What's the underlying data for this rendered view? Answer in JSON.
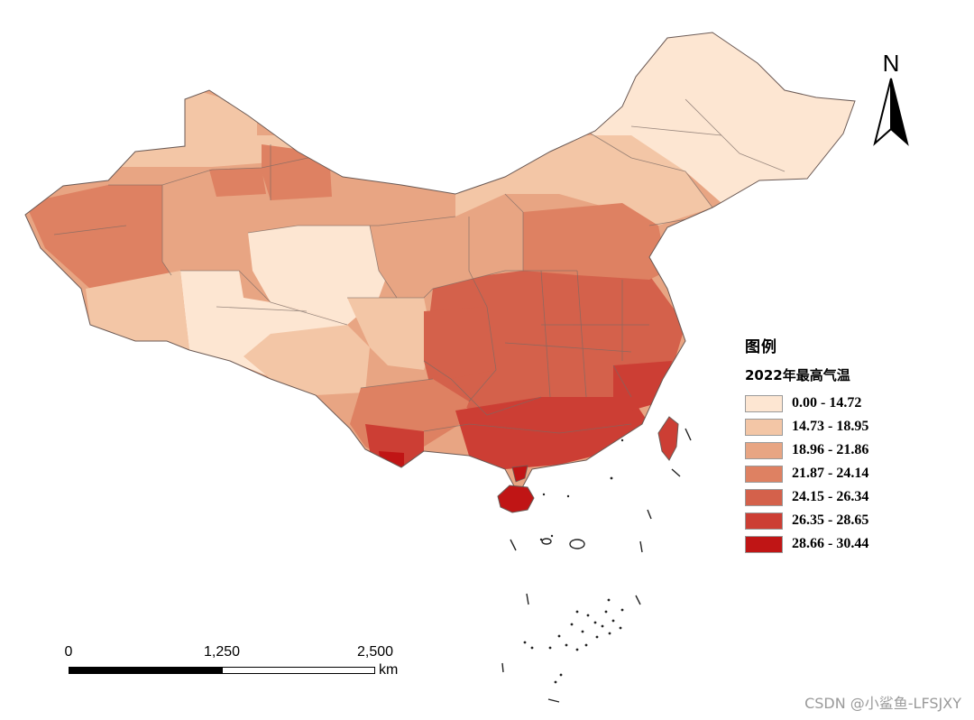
{
  "map": {
    "north_label": "N",
    "boundary_color": "#7a6a64",
    "island_color": "#222222"
  },
  "legend": {
    "title": "图例",
    "subtitle": "2022年最高气温",
    "classes": [
      {
        "label": "0.00 - 14.72",
        "color": "#fde6d2"
      },
      {
        "label": "14.73 - 18.95",
        "color": "#f3c6a6"
      },
      {
        "label": "18.96 - 21.86",
        "color": "#e8a583"
      },
      {
        "label": "21.87 - 24.14",
        "color": "#de8162"
      },
      {
        "label": "24.15 - 26.34",
        "color": "#d4614b"
      },
      {
        "label": "26.35 - 28.65",
        "color": "#cc3e34"
      },
      {
        "label": "28.66 - 30.44",
        "color": "#c01515"
      }
    ]
  },
  "scalebar": {
    "ticks": [
      "0",
      "1,250",
      "2,500"
    ],
    "unit": "km"
  },
  "watermark": "CSDN @小鲨鱼-LFSJXY"
}
